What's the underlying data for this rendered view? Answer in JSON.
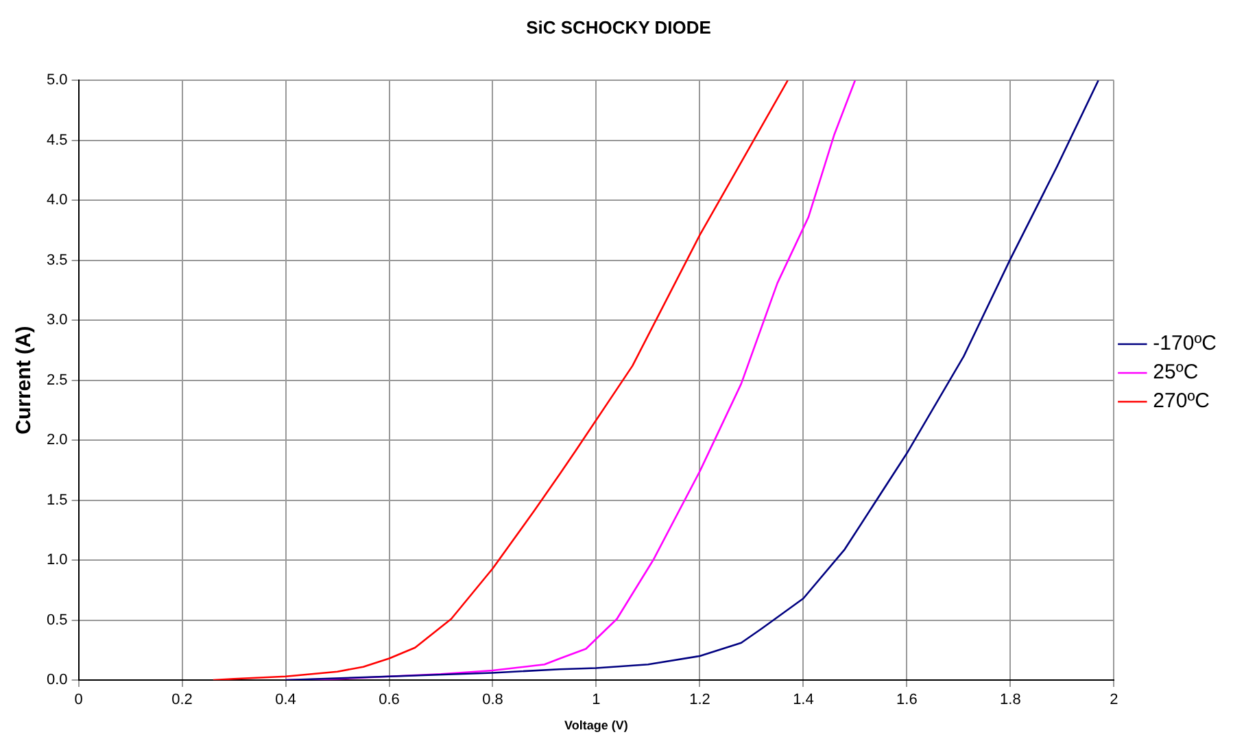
{
  "chart_data": {
    "type": "line",
    "title": "SiC SCHOCKY DIODE",
    "xlabel": "Voltage (V)",
    "ylabel": "Current (A)",
    "xlim": [
      0,
      2
    ],
    "xticks": [
      0,
      0.2,
      0.4,
      0.6,
      0.8,
      1,
      1.2,
      1.4,
      1.6,
      1.8,
      2
    ],
    "ylim": [
      0,
      5
    ],
    "yticks": [
      {
        "value": 0,
        "label": "0.0"
      },
      {
        "value": 0.5,
        "label": "0.5"
      },
      {
        "value": 1,
        "label": "1.0"
      },
      {
        "value": 1.5,
        "label": "1.5"
      },
      {
        "value": 2,
        "label": "2.0"
      },
      {
        "value": 2.5,
        "label": "2.5"
      },
      {
        "value": 3,
        "label": "3.0"
      },
      {
        "value": 3.5,
        "label": "3.5"
      },
      {
        "value": 4,
        "label": "4.0"
      },
      {
        "value": 4.5,
        "label": "4.5"
      },
      {
        "value": 5,
        "label": "5.0"
      }
    ],
    "grid": true,
    "legend": "right",
    "marker": "none",
    "line_style": "solid",
    "series": [
      {
        "name": "-170ºC",
        "color": "#000080",
        "x": [
          0.4,
          0.6,
          0.8,
          0.93,
          1.0,
          1.1,
          1.2,
          1.28,
          1.32,
          1.4,
          1.48,
          1.6,
          1.71,
          1.8,
          1.89,
          1.97
        ],
        "values": [
          0,
          0.03,
          0.06,
          0.09,
          0.1,
          0.13,
          0.2,
          0.31,
          0.43,
          0.68,
          1.09,
          1.89,
          2.7,
          3.51,
          4.28,
          5.0
        ]
      },
      {
        "name": "25ºC",
        "color": "#ff00ff",
        "x": [
          0.4,
          0.5,
          0.6,
          0.7,
          0.8,
          0.9,
          0.93,
          0.98,
          1.04,
          1.11,
          1.2,
          1.28,
          1.35,
          1.41,
          1.46,
          1.5
        ],
        "values": [
          0,
          0.01,
          0.03,
          0.05,
          0.08,
          0.13,
          0.18,
          0.26,
          0.51,
          1.0,
          1.74,
          2.47,
          3.31,
          3.86,
          4.55,
          5.0
        ]
      },
      {
        "name": "270ºC",
        "color": "#ff0000",
        "x": [
          0.26,
          0.3,
          0.4,
          0.5,
          0.55,
          0.6,
          0.65,
          0.72,
          0.8,
          0.88,
          0.93,
          0.96,
          1.07,
          1.2,
          1.37
        ],
        "values": [
          0,
          0.01,
          0.03,
          0.07,
          0.11,
          0.18,
          0.27,
          0.51,
          0.93,
          1.41,
          1.72,
          1.91,
          2.62,
          3.71,
          5.0
        ]
      }
    ]
  }
}
